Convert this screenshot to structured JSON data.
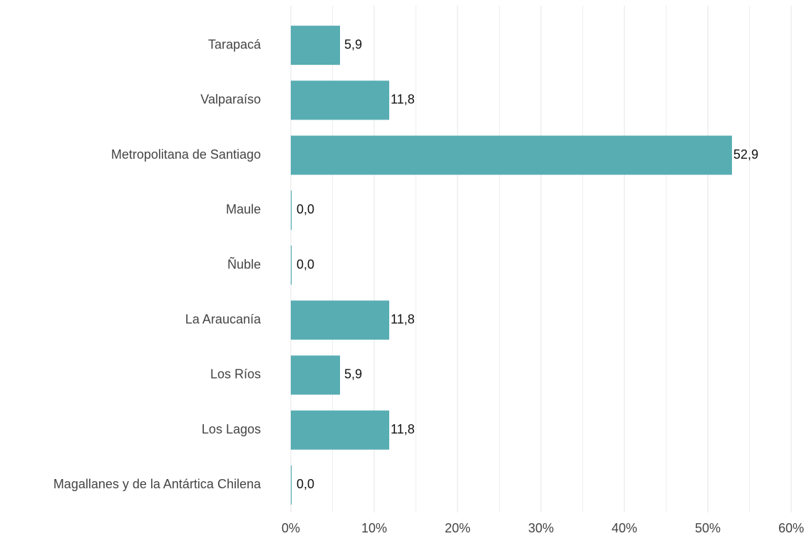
{
  "chart_data": {
    "type": "barh",
    "categories": [
      "Tarapacá",
      "Valparaíso",
      "Metropolitana de Santiago",
      "Maule",
      "Ñuble",
      "La Araucanía",
      "Los Ríos",
      "Los Lagos",
      "Magallanes y de la Antártica Chilena"
    ],
    "values": [
      5.9,
      11.8,
      52.9,
      0,
      0,
      11.8,
      5.9,
      11.8,
      0
    ],
    "value_labels": [
      "5,9",
      "11,8",
      "52,9",
      "0,0",
      "0,0",
      "11,8",
      "5,9",
      "11,8",
      "0,0"
    ],
    "color": "#58adb3",
    "xlim": [
      0,
      60
    ],
    "xticks": [
      {
        "value": 0,
        "label": "0%"
      },
      {
        "value": 10,
        "label": "10%"
      },
      {
        "value": 20,
        "label": "20%"
      },
      {
        "value": 30,
        "label": "30%"
      },
      {
        "value": 40,
        "label": "40%"
      },
      {
        "value": 50,
        "label": "50%"
      },
      {
        "value": 60,
        "label": "60%"
      }
    ],
    "xminor_ticks": [
      5,
      15,
      25,
      35,
      45,
      55
    ],
    "grid": true
  }
}
